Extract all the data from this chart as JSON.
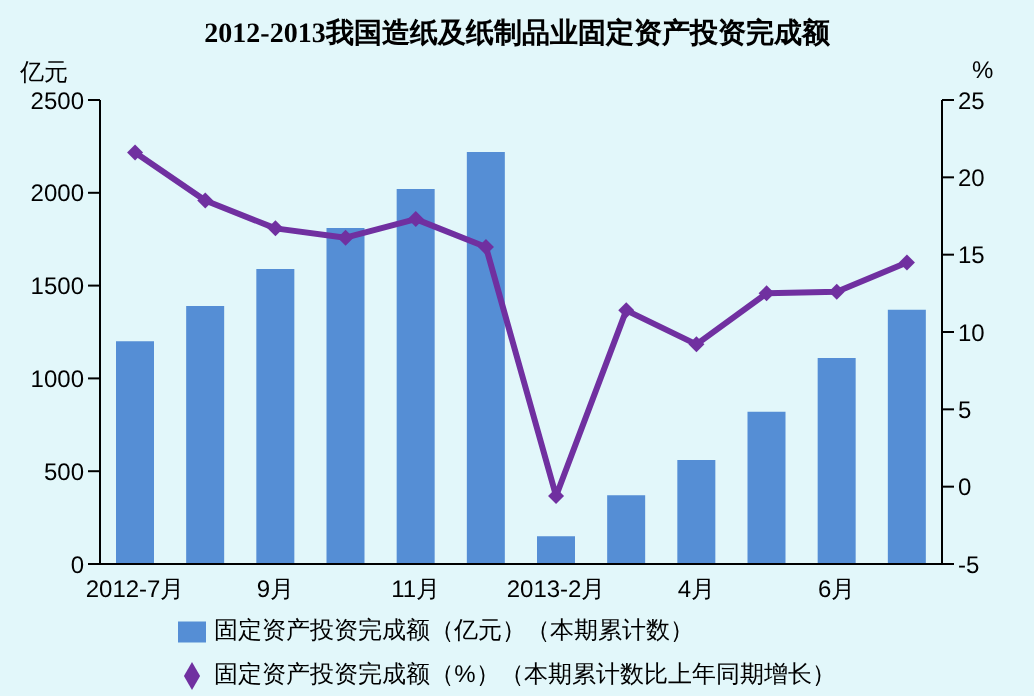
{
  "chart_data": {
    "type": "bar",
    "title": "2012-2013我国造纸及纸制品业固定资产投资完成额",
    "ylabel": "亿元",
    "y2label": "%",
    "categories": [
      "2012-7月",
      null,
      "9月",
      null,
      "11月",
      null,
      "2013-2月",
      null,
      "4月",
      null,
      "6月",
      null
    ],
    "series": [
      {
        "name": "固定资产投资完成额（亿元）（本期累计数）",
        "color": "#558ed5",
        "values": [
          1200,
          1390,
          1590,
          1810,
          2020,
          2220,
          150,
          370,
          560,
          820,
          1110,
          1370
        ]
      },
      {
        "name": "固定资产投资完成额（%）（本期累计数比上年同期增长）",
        "type": "line",
        "axis": "y2",
        "color": "#7030a0",
        "marker": "diamond",
        "values": [
          21.6,
          18.5,
          16.7,
          16.1,
          17.3,
          15.5,
          -0.6,
          11.4,
          9.2,
          12.5,
          12.6,
          14.5
        ]
      }
    ],
    "ylim": [
      0,
      2500
    ],
    "yticks": [
      0,
      500,
      1000,
      1500,
      2000,
      2500
    ],
    "y2lim": [
      -5,
      25
    ],
    "y2ticks": [
      -5,
      0,
      5,
      10,
      15,
      20,
      25
    ],
    "grid": false,
    "legend": "bottom"
  }
}
